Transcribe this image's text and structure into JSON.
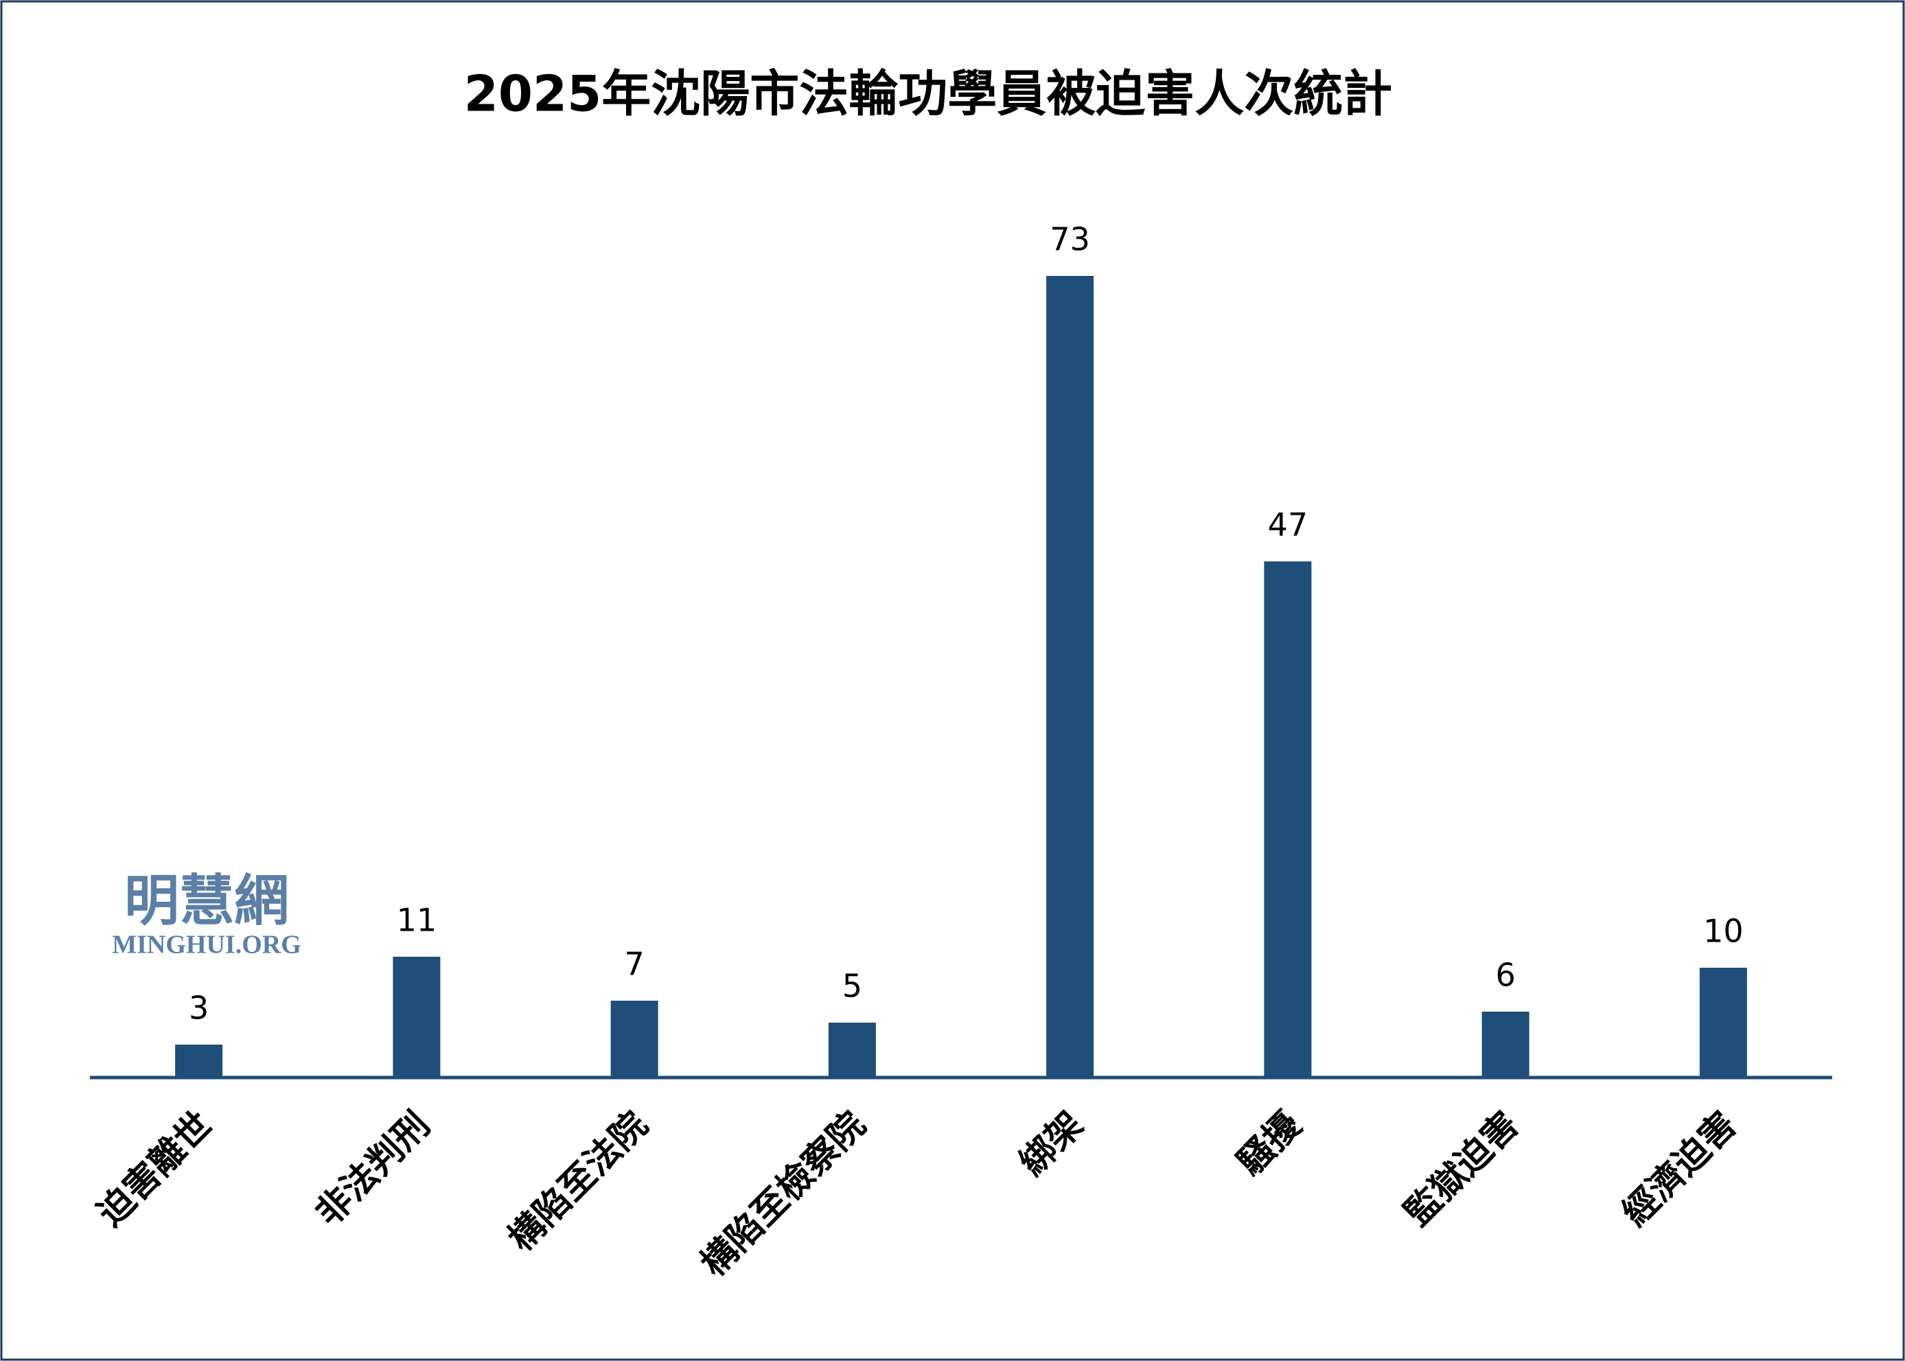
{
  "chart_data": {
    "type": "bar",
    "title": "2025年沈陽市法輪功學員被迫害人次統計",
    "categories": [
      "迫害離世",
      "非法判刑",
      "構陷至法院",
      "構陷至檢察院",
      "綁架",
      "騷擾",
      "監獄迫害",
      "經濟迫害"
    ],
    "values": [
      3,
      11,
      7,
      5,
      73,
      47,
      6,
      10
    ],
    "color": "#1f4e79",
    "ylim": [
      0,
      80
    ],
    "watermark": {
      "logo": "明慧網",
      "site": "MINGHUI.ORG"
    }
  }
}
